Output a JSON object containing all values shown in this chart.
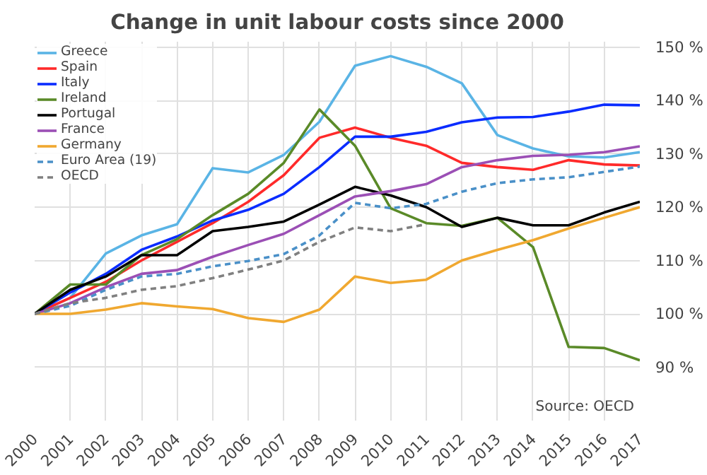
{
  "chart_data": {
    "type": "line",
    "title": "Change in unit labour costs since 2000",
    "x": [
      2000,
      2001,
      2002,
      2003,
      2004,
      2005,
      2006,
      2007,
      2008,
      2009,
      2010,
      2011,
      2012,
      2013,
      2014,
      2015,
      2016,
      2017
    ],
    "series": [
      {
        "name": "Greece",
        "color": "#5ab4e5",
        "values": [
          100,
          103,
          111.3,
          114.7,
          116.8,
          127.3,
          126.5,
          129.8,
          136,
          146.5,
          148.3,
          146.3,
          143.2,
          133.5,
          131,
          129.5,
          129.3,
          130.3
        ]
      },
      {
        "name": "Spain",
        "color": "#ff2a2a",
        "values": [
          100,
          103,
          106,
          110,
          113.5,
          117,
          121,
          126,
          133,
          134.9,
          133,
          131.5,
          128.3,
          127.5,
          127,
          128.8,
          128,
          127.8
        ]
      },
      {
        "name": "Italy",
        "color": "#0a2cff",
        "values": [
          100,
          104,
          107.5,
          112,
          114.5,
          117.5,
          119.5,
          122.5,
          127.5,
          133.2,
          133.2,
          134.1,
          135.9,
          136.8,
          136.9,
          137.9,
          139.2,
          139.1
        ]
      },
      {
        "name": "Ireland",
        "color": "#5a8a28",
        "values": [
          100,
          105.5,
          105.5,
          111,
          114,
          118.5,
          122.5,
          128.3,
          138.3,
          131.5,
          119.8,
          117,
          116.5,
          118,
          112.5,
          93.8,
          93.6,
          91.3
        ]
      },
      {
        "name": "Portugal",
        "color": "#000000",
        "values": [
          100,
          104.5,
          107,
          111,
          111,
          115.5,
          116.3,
          117.3,
          120.5,
          123.8,
          122.2,
          120,
          116.3,
          118,
          116.6,
          116.6,
          119,
          121
        ]
      },
      {
        "name": "France",
        "color": "#9b4fb5",
        "values": [
          100,
          102,
          105,
          107.5,
          108.2,
          110.7,
          112.9,
          115,
          118.5,
          122,
          123,
          124.3,
          127.5,
          128.8,
          129.6,
          129.8,
          130.3,
          131.4
        ]
      },
      {
        "name": "Germany",
        "color": "#f0a830",
        "values": [
          100,
          100,
          100.8,
          102,
          101.4,
          100.9,
          99.2,
          98.5,
          100.8,
          107,
          105.8,
          106.4,
          110,
          112,
          113.8,
          116,
          118,
          120
        ]
      },
      {
        "name": "Euro Area (19)",
        "color": "#4a90c8",
        "line_style": "dashed",
        "values": [
          100,
          101.5,
          104.5,
          107,
          107.5,
          108.9,
          109.9,
          111.2,
          114.7,
          120.8,
          119.8,
          120.6,
          122.9,
          124.5,
          125.2,
          125.6,
          126.6,
          127.6
        ]
      },
      {
        "name": "OECD",
        "color": "#808080",
        "line_style": "dashed",
        "values": [
          100,
          102,
          103,
          104.5,
          105.2,
          106.7,
          108.3,
          110,
          113.5,
          116.2,
          115.5,
          116.8,
          null,
          null,
          null,
          null,
          null,
          null
        ]
      }
    ],
    "xlim": [
      2000,
      2017
    ],
    "xticks": [
      2000,
      2001,
      2002,
      2003,
      2004,
      2005,
      2006,
      2007,
      2008,
      2009,
      2010,
      2011,
      2012,
      2013,
      2014,
      2015,
      2016,
      2017
    ],
    "ylim": [
      80,
      151
    ],
    "yticks": [
      {
        "value": 90,
        "label": "90 %"
      },
      {
        "value": 100,
        "label": "100 %"
      },
      {
        "value": 110,
        "label": "110 %"
      },
      {
        "value": 120,
        "label": "120 %"
      },
      {
        "value": 130,
        "label": "130 %"
      },
      {
        "value": 140,
        "label": "140 %"
      },
      {
        "value": 150,
        "label": "150 %"
      }
    ],
    "grid": true,
    "legend": "top left",
    "line_style": "solid",
    "annotations": [
      "Source: OECD"
    ]
  }
}
